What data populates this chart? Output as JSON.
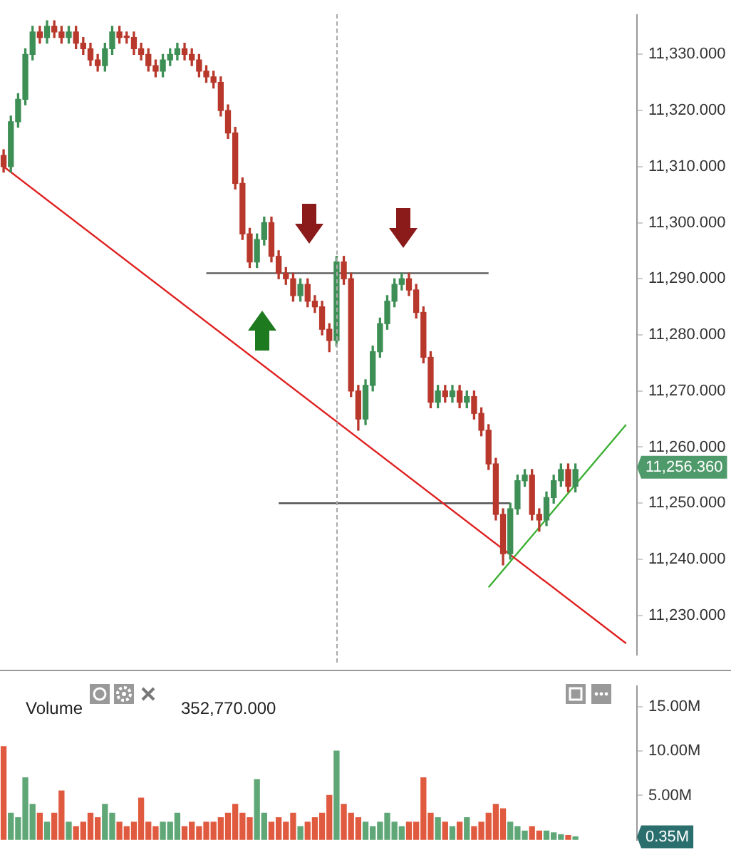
{
  "chart_data": [
    {
      "type": "candlestick",
      "categories": [
        null,
        null,
        null,
        null,
        null,
        null,
        null,
        null,
        null,
        null,
        null,
        null,
        null,
        null,
        null,
        null,
        null,
        null,
        null,
        null,
        null,
        null,
        null,
        null,
        null,
        null,
        null,
        null,
        null,
        null,
        null,
        null,
        null,
        null,
        null,
        null,
        null,
        null,
        null,
        null,
        null,
        null,
        null,
        null,
        null,
        null,
        null,
        null,
        null,
        null,
        null,
        null,
        null,
        null,
        null,
        null,
        null,
        null,
        null,
        null,
        null,
        null,
        null,
        null,
        null,
        null,
        null,
        null,
        null,
        null,
        null,
        null,
        null,
        null,
        null,
        null,
        null,
        null,
        null,
        null,
        null,
        null,
        null,
        null,
        null,
        null,
        null,
        null
      ],
      "ohlc": [
        [
          11312,
          11313,
          11309,
          11310
        ],
        [
          11310,
          11319,
          11309,
          11318
        ],
        [
          11318,
          11323,
          11317,
          11322
        ],
        [
          11322,
          11331,
          11321,
          11330
        ],
        [
          11330,
          11335,
          11329,
          11334
        ],
        [
          11334,
          11335,
          11332,
          11333
        ],
        [
          11333,
          11336,
          11332,
          11335
        ],
        [
          11335,
          11336,
          11333,
          11334
        ],
        [
          11334,
          11335,
          11332,
          11333
        ],
        [
          11333,
          11335,
          11332,
          11334
        ],
        [
          11334,
          11335,
          11331,
          11332
        ],
        [
          11332,
          11333,
          11330,
          11331
        ],
        [
          11331,
          11332,
          11328,
          11329
        ],
        [
          11329,
          11330,
          11327,
          11328
        ],
        [
          11328,
          11332,
          11327,
          11331
        ],
        [
          11331,
          11335,
          11330,
          11334
        ],
        [
          11334,
          11335,
          11332,
          11333
        ],
        [
          11333,
          11334,
          11332,
          11333
        ],
        [
          11333,
          11334,
          11330,
          11331
        ],
        [
          11331,
          11332,
          11329,
          11330
        ],
        [
          11330,
          11331,
          11327,
          11328
        ],
        [
          11328,
          11329,
          11326,
          11327
        ],
        [
          11327,
          11330,
          11326,
          11329
        ],
        [
          11329,
          11331,
          11328,
          11330
        ],
        [
          11330,
          11332,
          11329,
          11331
        ],
        [
          11331,
          11332,
          11329,
          11330
        ],
        [
          11330,
          11331,
          11328,
          11329
        ],
        [
          11329,
          11330,
          11326,
          11327
        ],
        [
          11327,
          11328,
          11325,
          11326
        ],
        [
          11326,
          11327,
          11324,
          11325
        ],
        [
          11325,
          11326,
          11319,
          11320
        ],
        [
          11320,
          11321,
          11315,
          11316
        ],
        [
          11316,
          11317,
          11306,
          11307
        ],
        [
          11307,
          11308,
          11297,
          11298
        ],
        [
          11298,
          11299,
          11292,
          11293
        ],
        [
          11293,
          11298,
          11292,
          11297
        ],
        [
          11297,
          11301,
          11296,
          11300
        ],
        [
          11300,
          11301,
          11293,
          11294
        ],
        [
          11294,
          11295,
          11290,
          11291
        ],
        [
          11291,
          11292,
          11289,
          11290
        ],
        [
          11290,
          11291,
          11286,
          11287
        ],
        [
          11287,
          11290,
          11286,
          11289
        ],
        [
          11289,
          11290,
          11285,
          11286
        ],
        [
          11286,
          11287,
          11284,
          11285
        ],
        [
          11285,
          11286,
          11280,
          11281
        ],
        [
          11281,
          11282,
          11277,
          11279
        ],
        [
          11279,
          11294,
          11278,
          11293
        ],
        [
          11293,
          11294,
          11289,
          11290
        ],
        [
          11290,
          11291,
          11269,
          11270
        ],
        [
          11270,
          11271,
          11263,
          11265
        ],
        [
          11265,
          11272,
          11264,
          11271
        ],
        [
          11271,
          11278,
          11270,
          11277
        ],
        [
          11277,
          11283,
          11276,
          11282
        ],
        [
          11282,
          11287,
          11281,
          11286
        ],
        [
          11286,
          11290,
          11285,
          11289
        ],
        [
          11289,
          11291,
          11288,
          11290
        ],
        [
          11290,
          11291,
          11287,
          11288
        ],
        [
          11288,
          11289,
          11283,
          11284
        ],
        [
          11284,
          11285,
          11275,
          11276
        ],
        [
          11276,
          11277,
          11267,
          11268
        ],
        [
          11268,
          11271,
          11267,
          11270
        ],
        [
          11270,
          11271,
          11268,
          11269
        ],
        [
          11269,
          11271,
          11268,
          11270
        ],
        [
          11270,
          11271,
          11267,
          11268
        ],
        [
          11268,
          11270,
          11267,
          11269
        ],
        [
          11269,
          11270,
          11265,
          11266
        ],
        [
          11266,
          11267,
          11262,
          11263
        ],
        [
          11263,
          11264,
          11256,
          11257
        ],
        [
          11257,
          11258,
          11247,
          11248
        ],
        [
          11248,
          11249,
          11239,
          11241
        ],
        [
          11241,
          11250,
          11240,
          11249
        ],
        [
          11249,
          11255,
          11248,
          11254
        ],
        [
          11254,
          11256,
          11253,
          11255
        ],
        [
          11255,
          11256,
          11247,
          11248
        ],
        [
          11248,
          11249,
          11245,
          11247
        ],
        [
          11247,
          11252,
          11246,
          11251
        ],
        [
          11251,
          11255,
          11250,
          11254
        ],
        [
          11254,
          11257,
          11253,
          11256
        ],
        [
          11256,
          11257,
          11252,
          11253
        ],
        [
          11253,
          11257,
          11252,
          11256
        ],
        null,
        null,
        null,
        null,
        null,
        null,
        null,
        null
      ],
      "series": [
        {
          "type": "line",
          "color": "#e02020",
          "values": [
            11310,
            null,
            null,
            null,
            null,
            null,
            null,
            null,
            null,
            null,
            null,
            null,
            null,
            null,
            null,
            null,
            null,
            null,
            null,
            null,
            null,
            null,
            null,
            null,
            null,
            null,
            null,
            null,
            null,
            null,
            null,
            null,
            null,
            null,
            null,
            null,
            null,
            null,
            null,
            null,
            null,
            null,
            null,
            null,
            null,
            null,
            null,
            null,
            null,
            null,
            null,
            null,
            null,
            null,
            null,
            null,
            null,
            null,
            null,
            null,
            null,
            null,
            null,
            null,
            null,
            null,
            null,
            null,
            null,
            null,
            null,
            null,
            null,
            null,
            null,
            null,
            null,
            null,
            null,
            null,
            null,
            null,
            null,
            null,
            null,
            null,
            11225,
            null
          ]
        },
        {
          "type": "line",
          "color": "#3cb034",
          "values": [
            null,
            null,
            null,
            null,
            null,
            null,
            null,
            null,
            null,
            null,
            null,
            null,
            null,
            null,
            null,
            null,
            null,
            null,
            null,
            null,
            null,
            null,
            null,
            null,
            null,
            null,
            null,
            null,
            null,
            null,
            null,
            null,
            null,
            null,
            null,
            null,
            null,
            null,
            null,
            null,
            null,
            null,
            null,
            null,
            null,
            null,
            null,
            null,
            null,
            null,
            null,
            null,
            null,
            null,
            null,
            null,
            null,
            null,
            null,
            null,
            null,
            null,
            null,
            null,
            null,
            null,
            null,
            11235,
            null,
            null,
            null,
            null,
            null,
            null,
            null,
            null,
            null,
            null,
            null,
            null,
            null,
            null,
            null,
            null,
            null,
            null,
            11264,
            null
          ]
        },
        {
          "type": "line",
          "color": "#555555",
          "values": [
            null,
            null,
            null,
            null,
            null,
            null,
            null,
            null,
            null,
            null,
            null,
            null,
            null,
            null,
            null,
            null,
            null,
            null,
            null,
            null,
            null,
            null,
            null,
            null,
            null,
            null,
            null,
            null,
            11291,
            null,
            null,
            null,
            null,
            null,
            null,
            null,
            null,
            null,
            null,
            null,
            null,
            null,
            null,
            null,
            null,
            null,
            null,
            null,
            null,
            null,
            null,
            null,
            null,
            null,
            null,
            null,
            null,
            null,
            null,
            null,
            null,
            null,
            null,
            null,
            null,
            null,
            null,
            11291,
            null,
            null,
            null,
            null,
            null,
            null,
            null,
            null,
            null,
            null,
            null,
            null,
            null,
            null,
            null,
            null,
            null,
            null,
            null,
            null
          ]
        },
        {
          "type": "line",
          "color": "#555555",
          "values": [
            null,
            null,
            null,
            null,
            null,
            null,
            null,
            null,
            null,
            null,
            null,
            null,
            null,
            null,
            null,
            null,
            null,
            null,
            null,
            null,
            null,
            null,
            null,
            null,
            null,
            null,
            null,
            null,
            null,
            null,
            null,
            null,
            null,
            null,
            null,
            null,
            null,
            null,
            11250,
            null,
            null,
            null,
            null,
            null,
            null,
            null,
            null,
            null,
            null,
            null,
            null,
            null,
            null,
            null,
            null,
            null,
            null,
            null,
            null,
            null,
            null,
            null,
            null,
            null,
            null,
            null,
            null,
            null,
            null,
            null,
            11250,
            null,
            null,
            null,
            null,
            null,
            null,
            null,
            null,
            null,
            null,
            null,
            null,
            null,
            null,
            null,
            null,
            null
          ]
        }
      ],
      "ylim": [
        11223,
        11337
      ],
      "yticks": [
        {
          "value": 11230,
          "label": "11,230.000"
        },
        {
          "value": 11240,
          "label": "11,240.000"
        },
        {
          "value": 11250,
          "label": "11,250.000"
        },
        {
          "value": 11260,
          "label": "11,260.000"
        },
        {
          "value": 11270,
          "label": "11,270.000"
        },
        {
          "value": 11280,
          "label": "11,280.000"
        },
        {
          "value": 11290,
          "label": "11,290.000"
        },
        {
          "value": 11300,
          "label": "11,300.000"
        },
        {
          "value": 11310,
          "label": "11,310.000"
        },
        {
          "value": 11320,
          "label": "11,320.000"
        },
        {
          "value": 11330,
          "label": "11,330.000"
        }
      ],
      "annotations": [
        "11,256.360"
      ],
      "tick_labels": "y",
      "grid": false,
      "legend": false,
      "marker": "none"
    },
    {
      "type": "bar",
      "categories": [
        null,
        null,
        null,
        null,
        null,
        null,
        null,
        null,
        null,
        null,
        null,
        null,
        null,
        null,
        null,
        null,
        null,
        null,
        null,
        null,
        null,
        null,
        null,
        null,
        null,
        null,
        null,
        null,
        null,
        null,
        null,
        null,
        null,
        null,
        null,
        null,
        null,
        null,
        null,
        null,
        null,
        null,
        null,
        null,
        null,
        null,
        null,
        null,
        null,
        null,
        null,
        null,
        null,
        null,
        null,
        null,
        null,
        null,
        null,
        null,
        null,
        null,
        null,
        null,
        null,
        null,
        null,
        null,
        null,
        null,
        null,
        null,
        null,
        null,
        null,
        null,
        null,
        null,
        null,
        null,
        null,
        null,
        null,
        null,
        null,
        null,
        null,
        null
      ],
      "values": [
        10.5,
        3,
        2.5,
        7,
        4,
        3,
        2,
        3,
        5.5,
        2,
        1.5,
        2,
        3,
        2.5,
        4,
        3,
        2,
        1.5,
        2,
        4.7,
        2,
        1.5,
        2,
        2,
        3,
        1.5,
        2,
        1.5,
        2,
        2,
        2.5,
        3,
        4,
        3,
        2.5,
        6.8,
        3,
        2,
        2.5,
        2,
        3,
        1.5,
        2,
        2.5,
        3,
        5,
        10,
        4,
        3,
        2.5,
        2,
        1.5,
        2,
        3,
        2,
        1.5,
        2,
        2,
        7,
        3,
        2.5,
        2,
        1.5,
        2,
        2.5,
        1.5,
        2,
        3,
        4,
        3.5,
        2,
        1.5,
        1,
        1.5,
        1,
        1,
        0.8,
        0.6,
        0.5,
        0.35,
        null,
        null,
        null,
        null,
        null,
        null,
        null,
        null
      ],
      "colors": [
        "#e05a3f",
        "#5fa777",
        "#5fa777",
        "#5fa777",
        "#5fa777",
        "#e05a3f",
        "#5fa777",
        "#e05a3f",
        "#e05a3f",
        "#5fa777",
        "#e05a3f",
        "#e05a3f",
        "#e05a3f",
        "#e05a3f",
        "#5fa777",
        "#5fa777",
        "#e05a3f",
        "#e05a3f",
        "#e05a3f",
        "#e05a3f",
        "#e05a3f",
        "#e05a3f",
        "#5fa777",
        "#5fa777",
        "#5fa777",
        "#e05a3f",
        "#e05a3f",
        "#e05a3f",
        "#e05a3f",
        "#e05a3f",
        "#e05a3f",
        "#e05a3f",
        "#e05a3f",
        "#e05a3f",
        "#e05a3f",
        "#5fa777",
        "#5fa777",
        "#e05a3f",
        "#e05a3f",
        "#e05a3f",
        "#e05a3f",
        "#5fa777",
        "#e05a3f",
        "#e05a3f",
        "#e05a3f",
        "#e05a3f",
        "#5fa777",
        "#e05a3f",
        "#e05a3f",
        "#e05a3f",
        "#5fa777",
        "#5fa777",
        "#5fa777",
        "#5fa777",
        "#5fa777",
        "#5fa777",
        "#e05a3f",
        "#e05a3f",
        "#e05a3f",
        "#e05a3f",
        "#5fa777",
        "#e05a3f",
        "#5fa777",
        "#e05a3f",
        "#5fa777",
        "#e05a3f",
        "#e05a3f",
        "#e05a3f",
        "#e05a3f",
        "#e05a3f",
        "#5fa777",
        "#5fa777",
        "#5fa777",
        "#e05a3f",
        "#e05a3f",
        "#5fa777",
        "#5fa777",
        "#5fa777",
        "#e05a3f",
        "#5fa777",
        "#e05a3f",
        "#e05a3f",
        "#e05a3f",
        "#e05a3f",
        "#e05a3f",
        "#e05a3f",
        "#e05a3f",
        "#e05a3f"
      ],
      "ylim": [
        0,
        17.3
      ],
      "yticks": [
        {
          "value": 5,
          "label": "5.00M"
        },
        {
          "value": 10,
          "label": "10.00M"
        },
        {
          "value": 15,
          "label": "15.00M"
        }
      ],
      "annotations": [
        "Volume",
        "352,770.000",
        "0.35M"
      ],
      "tick_labels": "y",
      "grid": false,
      "legend": false
    }
  ]
}
